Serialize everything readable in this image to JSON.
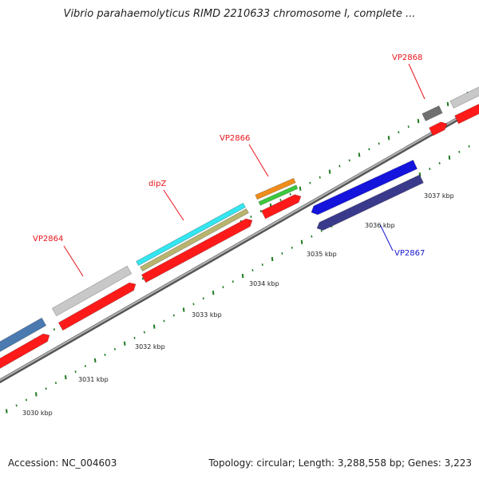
{
  "title": "Vibrio parahaemolyticus RIMD 2210633 chromosome I, complete ...",
  "accession": "Accession: NC_004603",
  "summary": "Topology: circular; Length: 3,288,558 bp; Genes: 3,223",
  "scale_labels": [
    "3030 kbp",
    "3031 kbp",
    "3032 kbp",
    "3033 kbp",
    "3034 kbp",
    "3035 kbp",
    "3036 kbp",
    "3037 kbp"
  ],
  "gene_labels": [
    {
      "text": "VP2864",
      "color": "#e8141b"
    },
    {
      "text": "dipZ",
      "color": "#e8141b"
    },
    {
      "text": "VP2866",
      "color": "#e8141b"
    },
    {
      "text": "VP2867",
      "color": "#1414cc"
    },
    {
      "text": "VP2868",
      "color": "#e8141b"
    }
  ],
  "colors": {
    "backbone": "#8c8c8c",
    "tick": "#1e7a1e",
    "gene_forward": "#ff1a1a",
    "gene_reverse": "#1414dd",
    "gene_reverse_dark": "#3a3a8c",
    "feature_cyan": "#33e6f0",
    "feature_olive": "#b8b46e",
    "feature_orange": "#f08c1a",
    "feature_green": "#3cc83c",
    "feature_gray": "#c8c8c8",
    "feature_darkgray": "#707070",
    "feature_steel": "#4a7ab0"
  }
}
